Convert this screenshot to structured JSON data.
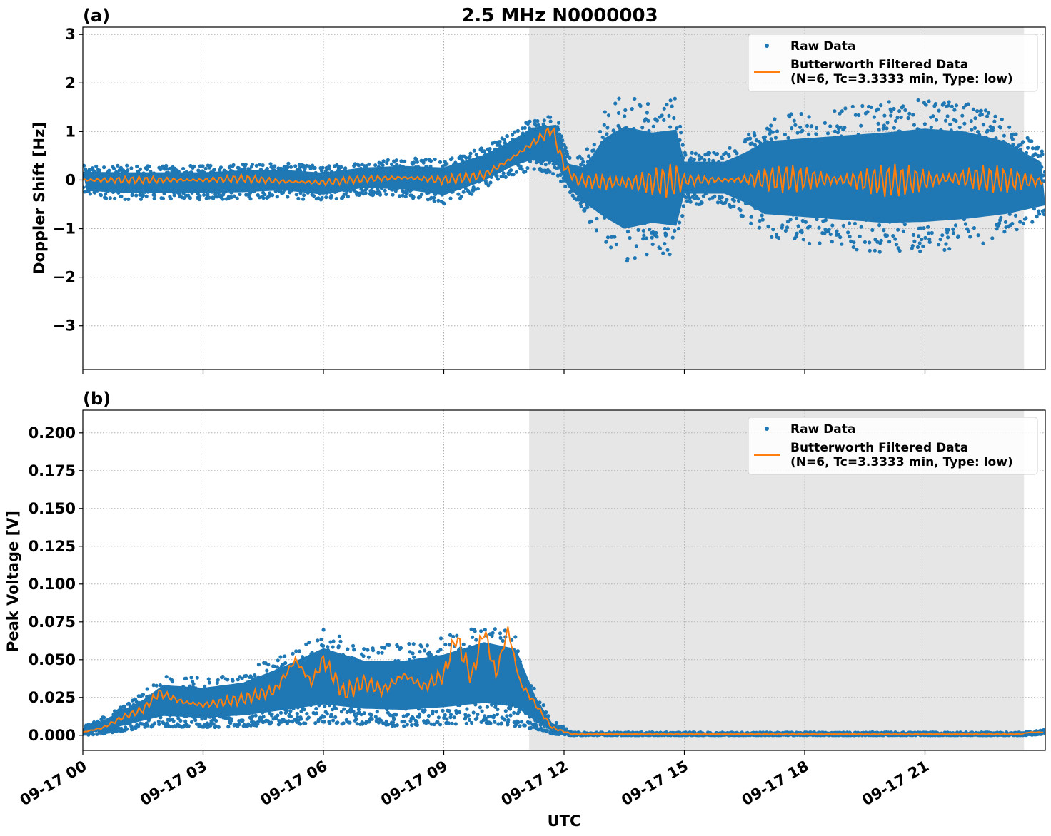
{
  "figure": {
    "title": "2.5 MHz N0000003",
    "xlabel": "UTC",
    "colors": {
      "raw": "#1f77b4",
      "filtered": "#ff7f0e",
      "shade": "#e6e6e6",
      "grid": "#b0b0b0"
    }
  },
  "chart_data": [
    {
      "panel_label": "(a)",
      "type": "scatter",
      "ylabel": "Doppler Shift [Hz]",
      "xlim": [
        "09-17 00:00",
        "09-18 00:00"
      ],
      "ylim": [
        -3.9,
        3.15
      ],
      "yticks": [
        -3,
        -2,
        -1,
        0,
        1,
        2,
        3
      ],
      "ytick_labels": [
        "−3",
        "−2",
        "−1",
        "0",
        "1",
        "2",
        "3"
      ],
      "shaded_span_hours": [
        11.13,
        23.47
      ],
      "grid": true,
      "legend": {
        "placement": "top-right",
        "entries": [
          "Raw Data",
          "Butterworth Filtered Data",
          "(N=6, Tc=3.3333 min, Type: low)"
        ]
      },
      "series": [
        {
          "name": "Raw Data",
          "style": "points",
          "envelope": [
            {
              "t": 0,
              "lo": -0.35,
              "hi": 0.3
            },
            {
              "t": 1,
              "lo": -0.4,
              "hi": 0.3
            },
            {
              "t": 2,
              "lo": -0.4,
              "hi": 0.3
            },
            {
              "t": 3,
              "lo": -0.4,
              "hi": 0.3
            },
            {
              "t": 4,
              "lo": -0.4,
              "hi": 0.35
            },
            {
              "t": 5,
              "lo": -0.35,
              "hi": 0.35
            },
            {
              "t": 6,
              "lo": -0.45,
              "hi": 0.3
            },
            {
              "t": 7,
              "lo": -0.3,
              "hi": 0.4
            },
            {
              "t": 8,
              "lo": -0.35,
              "hi": 0.45
            },
            {
              "t": 9,
              "lo": -0.5,
              "hi": 0.45
            },
            {
              "t": 10,
              "lo": -0.2,
              "hi": 0.7
            },
            {
              "t": 10.7,
              "lo": 0.1,
              "hi": 1.0
            },
            {
              "t": 11.2,
              "lo": 0.2,
              "hi": 1.3
            },
            {
              "t": 11.8,
              "lo": 0.1,
              "hi": 1.4
            },
            {
              "t": 12.1,
              "lo": -0.3,
              "hi": 0.5
            },
            {
              "t": 12.5,
              "lo": -0.7,
              "hi": 0.5
            },
            {
              "t": 13,
              "lo": -1.3,
              "hi": 1.4
            },
            {
              "t": 13.5,
              "lo": -1.7,
              "hi": 1.8
            },
            {
              "t": 14.2,
              "lo": -1.5,
              "hi": 1.6
            },
            {
              "t": 14.8,
              "lo": -1.6,
              "hi": 1.7
            },
            {
              "t": 15,
              "lo": -0.5,
              "hi": 0.6
            },
            {
              "t": 16,
              "lo": -0.5,
              "hi": 0.6
            },
            {
              "t": 16.5,
              "lo": -0.8,
              "hi": 0.9
            },
            {
              "t": 17,
              "lo": -1.2,
              "hi": 1.3
            },
            {
              "t": 18,
              "lo": -1.3,
              "hi": 1.4
            },
            {
              "t": 19,
              "lo": -1.4,
              "hi": 1.5
            },
            {
              "t": 20,
              "lo": -1.5,
              "hi": 1.6
            },
            {
              "t": 21,
              "lo": -1.5,
              "hi": 1.7
            },
            {
              "t": 22,
              "lo": -1.4,
              "hi": 1.6
            },
            {
              "t": 23,
              "lo": -1.2,
              "hi": 1.3
            },
            {
              "t": 24,
              "lo": -0.8,
              "hi": 0.6
            }
          ]
        },
        {
          "name": "Butterworth Filtered Data",
          "style": "line",
          "points": [
            {
              "t": 0,
              "y": 0.0
            },
            {
              "t": 1,
              "y": 0.0
            },
            {
              "t": 2,
              "y": 0.0
            },
            {
              "t": 3,
              "y": 0.0
            },
            {
              "t": 4,
              "y": 0.03
            },
            {
              "t": 5,
              "y": -0.03
            },
            {
              "t": 6,
              "y": -0.05
            },
            {
              "t": 7,
              "y": 0.02
            },
            {
              "t": 8,
              "y": 0.05
            },
            {
              "t": 9,
              "y": 0.0
            },
            {
              "t": 10,
              "y": 0.1
            },
            {
              "t": 10.6,
              "y": 0.4
            },
            {
              "t": 11.2,
              "y": 0.75
            },
            {
              "t": 11.7,
              "y": 1.05
            },
            {
              "t": 12.0,
              "y": 0.3
            },
            {
              "t": 12.3,
              "y": 0.0
            },
            {
              "t": 13,
              "y": -0.05
            },
            {
              "t": 14,
              "y": -0.05
            },
            {
              "t": 15,
              "y": 0.0
            },
            {
              "t": 16,
              "y": 0.0
            },
            {
              "t": 17,
              "y": 0.02
            },
            {
              "t": 18,
              "y": 0.03
            },
            {
              "t": 19,
              "y": 0.0
            },
            {
              "t": 20,
              "y": -0.02
            },
            {
              "t": 21,
              "y": 0.0
            },
            {
              "t": 22,
              "y": 0.05
            },
            {
              "t": 23,
              "y": 0.0
            },
            {
              "t": 24,
              "y": -0.03
            }
          ]
        }
      ]
    },
    {
      "panel_label": "(b)",
      "type": "scatter",
      "ylabel": "Peak Voltage [V]",
      "xlim": [
        "09-17 00:00",
        "09-18 00:00"
      ],
      "ylim": [
        -0.01,
        0.215
      ],
      "yticks": [
        0.0,
        0.025,
        0.05,
        0.075,
        0.1,
        0.125,
        0.15,
        0.175,
        0.2
      ],
      "ytick_labels": [
        "0.000",
        "0.025",
        "0.050",
        "0.075",
        "0.100",
        "0.125",
        "0.150",
        "0.175",
        "0.200"
      ],
      "shaded_span_hours": [
        11.13,
        23.47
      ],
      "grid": true,
      "legend": {
        "placement": "top-right",
        "entries": [
          "Raw Data",
          "Butterworth Filtered Data",
          "(N=6, Tc=3.3333 min, Type: low)"
        ]
      },
      "series": [
        {
          "name": "Raw Data",
          "style": "points",
          "envelope": [
            {
              "t": 0,
              "lo": 0.0,
              "hi": 0.006
            },
            {
              "t": 0.5,
              "lo": 0.001,
              "hi": 0.012
            },
            {
              "t": 1,
              "lo": 0.003,
              "hi": 0.02
            },
            {
              "t": 1.5,
              "lo": 0.005,
              "hi": 0.028
            },
            {
              "t": 2,
              "lo": 0.006,
              "hi": 0.04
            },
            {
              "t": 3,
              "lo": 0.005,
              "hi": 0.038
            },
            {
              "t": 4,
              "lo": 0.006,
              "hi": 0.042
            },
            {
              "t": 5,
              "lo": 0.007,
              "hi": 0.055
            },
            {
              "t": 6,
              "lo": 0.008,
              "hi": 0.07
            },
            {
              "t": 7,
              "lo": 0.007,
              "hi": 0.06
            },
            {
              "t": 8,
              "lo": 0.006,
              "hi": 0.06
            },
            {
              "t": 9,
              "lo": 0.007,
              "hi": 0.065
            },
            {
              "t": 10,
              "lo": 0.008,
              "hi": 0.075
            },
            {
              "t": 10.8,
              "lo": 0.006,
              "hi": 0.07
            },
            {
              "t": 11.3,
              "lo": 0.004,
              "hi": 0.03
            },
            {
              "t": 11.7,
              "lo": 0.001,
              "hi": 0.01
            },
            {
              "t": 12.2,
              "lo": 0.0,
              "hi": 0.002
            },
            {
              "t": 23.5,
              "lo": 0.0,
              "hi": 0.002
            },
            {
              "t": 24,
              "lo": 0.001,
              "hi": 0.004
            }
          ]
        },
        {
          "name": "Butterworth Filtered Data",
          "style": "line",
          "points": [
            {
              "t": 0,
              "y": 0.002
            },
            {
              "t": 0.5,
              "y": 0.005
            },
            {
              "t": 1,
              "y": 0.012
            },
            {
              "t": 1.5,
              "y": 0.017
            },
            {
              "t": 1.9,
              "y": 0.028
            },
            {
              "t": 2.5,
              "y": 0.022
            },
            {
              "t": 3,
              "y": 0.02
            },
            {
              "t": 4,
              "y": 0.024
            },
            {
              "t": 4.8,
              "y": 0.03
            },
            {
              "t": 5.3,
              "y": 0.05
            },
            {
              "t": 5.7,
              "y": 0.035
            },
            {
              "t": 6,
              "y": 0.05
            },
            {
              "t": 6.5,
              "y": 0.028
            },
            {
              "t": 7,
              "y": 0.035
            },
            {
              "t": 7.5,
              "y": 0.03
            },
            {
              "t": 8,
              "y": 0.04
            },
            {
              "t": 8.5,
              "y": 0.032
            },
            {
              "t": 9,
              "y": 0.04
            },
            {
              "t": 9.3,
              "y": 0.065
            },
            {
              "t": 9.7,
              "y": 0.038
            },
            {
              "t": 10.0,
              "y": 0.07
            },
            {
              "t": 10.3,
              "y": 0.04
            },
            {
              "t": 10.6,
              "y": 0.07
            },
            {
              "t": 10.9,
              "y": 0.035
            },
            {
              "t": 11.3,
              "y": 0.02
            },
            {
              "t": 11.7,
              "y": 0.005
            },
            {
              "t": 12.2,
              "y": 0.0008
            },
            {
              "t": 23.4,
              "y": 0.0008
            },
            {
              "t": 23.6,
              "y": 0.002
            },
            {
              "t": 24,
              "y": 0.002
            }
          ]
        }
      ]
    }
  ],
  "xaxis": {
    "tick_hours": [
      0,
      3,
      6,
      9,
      12,
      15,
      18,
      21
    ],
    "tick_labels": [
      "09-17 00",
      "09-17 03",
      "09-17 06",
      "09-17 09",
      "09-17 12",
      "09-17 15",
      "09-17 18",
      "09-17 21"
    ]
  }
}
